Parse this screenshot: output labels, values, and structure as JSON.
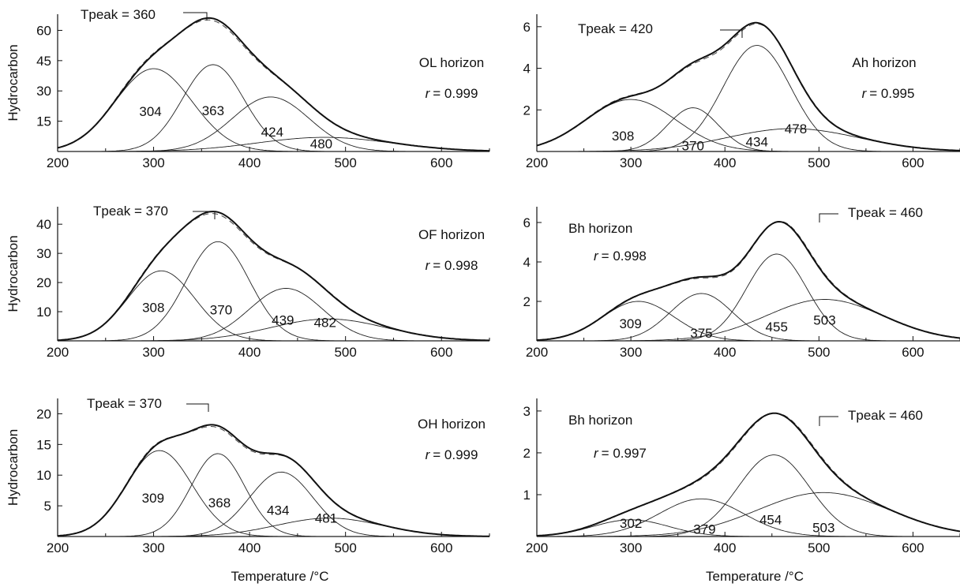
{
  "chart_data": [
    {
      "type": "line",
      "ylabel": "Hydrocarbon",
      "xlabel": "",
      "xlim": [
        200,
        650
      ],
      "ylim": [
        0,
        68
      ],
      "xticks": [
        200,
        300,
        400,
        500,
        600
      ],
      "yticks": [
        15,
        30,
        45,
        60
      ],
      "horizon_label": "OL horizon",
      "r_label": "r",
      "r_value": "= 0.999",
      "tpeak_label": "Tpeak = 360",
      "tpeak": {
        "x": 360,
        "y": 65
      },
      "envelope_peak": {
        "x": 358,
        "y": 65
      },
      "components": [
        {
          "label": "304",
          "center": 300,
          "height": 41,
          "sigma": 40
        },
        {
          "label": "363",
          "center": 362,
          "height": 43,
          "sigma": 32
        },
        {
          "label": "424",
          "center": 422,
          "height": 27,
          "sigma": 40
        },
        {
          "label": "480",
          "center": 478,
          "height": 7,
          "sigma": 70
        }
      ]
    },
    {
      "type": "line",
      "ylabel": "",
      "xlabel": "",
      "xlim": [
        200,
        650
      ],
      "ylim": [
        0,
        6.6
      ],
      "xticks": [
        200,
        300,
        400,
        500,
        600
      ],
      "yticks": [
        2,
        4,
        6
      ],
      "horizon_label": "Ah horizon",
      "r_label": "r",
      "r_value": "= 0.995",
      "tpeak_label": "Tpeak = 420",
      "tpeak": {
        "x": 420,
        "y": 5.9
      },
      "envelope_peak": {
        "x": 420,
        "y": 5.9
      },
      "components": [
        {
          "label": "308",
          "center": 300,
          "height": 2.5,
          "sigma": 48
        },
        {
          "label": "370",
          "center": 366,
          "height": 2.1,
          "sigma": 27
        },
        {
          "label": "434",
          "center": 434,
          "height": 5.1,
          "sigma": 36
        },
        {
          "label": "478",
          "center": 472,
          "height": 1.1,
          "sigma": 70
        }
      ]
    },
    {
      "type": "line",
      "ylabel": "Hydrocarbon",
      "xlabel": "",
      "xlim": [
        200,
        650
      ],
      "ylim": [
        0,
        46
      ],
      "xticks": [
        200,
        300,
        400,
        500,
        600
      ],
      "yticks": [
        10,
        20,
        30,
        40
      ],
      "horizon_label": "OF horizon",
      "r_label": "r",
      "r_value": "= 0.998",
      "tpeak_label": "Tpeak = 370",
      "tpeak": {
        "x": 370,
        "y": 42.5
      },
      "envelope_peak": {
        "x": 365,
        "y": 42.5
      },
      "components": [
        {
          "label": "308",
          "center": 308,
          "height": 24,
          "sigma": 35
        },
        {
          "label": "370",
          "center": 367,
          "height": 34,
          "sigma": 33
        },
        {
          "label": "439",
          "center": 438,
          "height": 18,
          "sigma": 38
        },
        {
          "label": "482",
          "center": 482,
          "height": 7.5,
          "sigma": 60
        }
      ]
    },
    {
      "type": "line",
      "ylabel": "",
      "xlabel": "",
      "xlim": [
        200,
        650
      ],
      "ylim": [
        0,
        6.8
      ],
      "xticks": [
        200,
        300,
        400,
        500,
        600
      ],
      "yticks": [
        2,
        4,
        6
      ],
      "horizon_label": "Bh horizon",
      "r_label": "r",
      "r_value": "= 0.998",
      "tpeak_label": "Tpeak = 460",
      "tpeak": {
        "x": 460,
        "y": 6.2
      },
      "envelope_peak": {
        "x": 460,
        "y": 6.2
      },
      "components": [
        {
          "label": "309",
          "center": 308,
          "height": 2.0,
          "sigma": 38
        },
        {
          "label": "375",
          "center": 375,
          "height": 2.4,
          "sigma": 33
        },
        {
          "label": "455",
          "center": 455,
          "height": 4.4,
          "sigma": 32
        },
        {
          "label": "503",
          "center": 506,
          "height": 2.1,
          "sigma": 62
        }
      ]
    },
    {
      "type": "line",
      "ylabel": "Hydrocarbon",
      "xlabel": "Temperature /°C",
      "xlim": [
        200,
        650
      ],
      "ylim": [
        0,
        22.5
      ],
      "xticks": [
        200,
        300,
        400,
        500,
        600
      ],
      "yticks": [
        5,
        10,
        15,
        20
      ],
      "horizon_label": "OH horizon",
      "r_label": "r",
      "r_value": "= 0.999",
      "tpeak_label": "Tpeak = 370",
      "tpeak": {
        "x": 370,
        "y": 20.8
      },
      "envelope_peak": {
        "x": 363,
        "y": 20.8
      },
      "components": [
        {
          "label": "309",
          "center": 306,
          "height": 14,
          "sigma": 34
        },
        {
          "label": "368",
          "center": 367,
          "height": 13.5,
          "sigma": 28
        },
        {
          "label": "434",
          "center": 433,
          "height": 10.5,
          "sigma": 33
        },
        {
          "label": "481",
          "center": 483,
          "height": 3,
          "sigma": 55
        }
      ]
    },
    {
      "type": "line",
      "ylabel": "",
      "xlabel": "Temperature /°C",
      "xlim": [
        200,
        650
      ],
      "ylim": [
        0,
        3.3
      ],
      "xticks": [
        200,
        300,
        400,
        500,
        600
      ],
      "yticks": [
        1,
        2,
        3
      ],
      "horizon_label": "Bh horizon",
      "r_label": "r",
      "r_value": "= 0.997",
      "tpeak_label": "Tpeak = 460",
      "tpeak": {
        "x": 460,
        "y": 3.0
      },
      "envelope_peak": {
        "x": 455,
        "y": 3.0
      },
      "components": [
        {
          "label": "302",
          "center": 300,
          "height": 0.4,
          "sigma": 40
        },
        {
          "label": "379",
          "center": 375,
          "height": 0.9,
          "sigma": 45
        },
        {
          "label": "454",
          "center": 452,
          "height": 1.95,
          "sigma": 38
        },
        {
          "label": "503",
          "center": 505,
          "height": 1.05,
          "sigma": 70
        }
      ]
    }
  ]
}
